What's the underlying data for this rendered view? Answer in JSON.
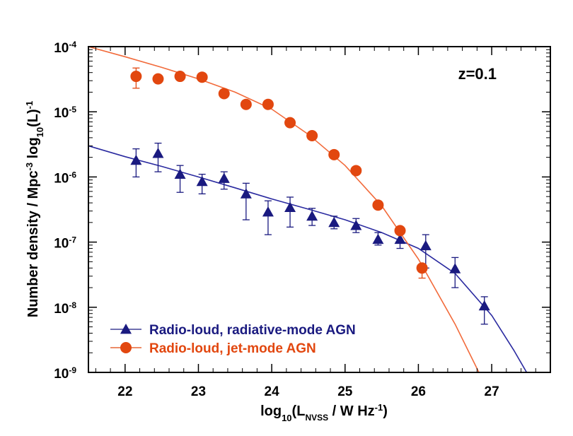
{
  "chart_data": {
    "type": "scatter",
    "title": "",
    "annotation": "z=0.1",
    "xlabel": {
      "pre": "log",
      "sub1": "10",
      "mid": "(L",
      "sub2": "NVSS",
      "post": " / W Hz",
      "sup": "-1",
      "end": ")"
    },
    "ylabel": {
      "p1": "Number density / Mpc",
      "sup1": "-3",
      "p2": " log",
      "sub": "10",
      "p3": "(L)",
      "sup2": "-1"
    },
    "x_range": [
      21.5,
      27.8
    ],
    "y_log_range": [
      -9,
      -4
    ],
    "x_ticks": [
      "22",
      "23",
      "24",
      "25",
      "26",
      "27"
    ],
    "y_ticks": [
      {
        "base": "10",
        "exp": "-9"
      },
      {
        "base": "10",
        "exp": "-8"
      },
      {
        "base": "10",
        "exp": "-7"
      },
      {
        "base": "10",
        "exp": "-6"
      },
      {
        "base": "10",
        "exp": "-5"
      },
      {
        "base": "10",
        "exp": "-4"
      }
    ],
    "legend_position": "bottom-left",
    "series": [
      {
        "name": "Radio-loud, radiative-mode AGN",
        "marker": "triangle",
        "color": "#1a1a80",
        "curve_color": "#2a2aa0",
        "points": [
          {
            "x": 22.15,
            "y": 1.8e-06,
            "lo": 1e-06,
            "hi": 2.7e-06
          },
          {
            "x": 22.45,
            "y": 2.3e-06,
            "lo": 1.2e-06,
            "hi": 3.3e-06
          },
          {
            "x": 22.75,
            "y": 1.1e-06,
            "lo": 5.8e-07,
            "hi": 1.5e-06
          },
          {
            "x": 23.05,
            "y": 8.5e-07,
            "lo": 5.5e-07,
            "hi": 1.1e-06
          },
          {
            "x": 23.35,
            "y": 9.5e-07,
            "lo": 6.5e-07,
            "hi": 1.2e-06
          },
          {
            "x": 23.65,
            "y": 5.5e-07,
            "lo": 2.2e-07,
            "hi": 8e-07
          },
          {
            "x": 23.95,
            "y": 2.9e-07,
            "lo": 1.3e-07,
            "hi": 4.3e-07
          },
          {
            "x": 24.25,
            "y": 3.4e-07,
            "lo": 1.7e-07,
            "hi": 4.9e-07
          },
          {
            "x": 24.55,
            "y": 2.5e-07,
            "lo": 1.8e-07,
            "hi": 3.3e-07
          },
          {
            "x": 24.85,
            "y": 2e-07,
            "lo": 1.6e-07,
            "hi": 2.5e-07
          },
          {
            "x": 25.15,
            "y": 1.8e-07,
            "lo": 1.4e-07,
            "hi": 2.3e-07
          },
          {
            "x": 25.45,
            "y": 1.1e-07,
            "lo": 9e-08,
            "hi": 1.4e-07
          },
          {
            "x": 25.75,
            "y": 1.1e-07,
            "lo": 8e-08,
            "hi": 1.4e-07
          },
          {
            "x": 26.1,
            "y": 8.8e-08,
            "lo": 4e-08,
            "hi": 1.3e-07
          },
          {
            "x": 26.5,
            "y": 3.9e-08,
            "lo": 2e-08,
            "hi": 5.8e-08
          },
          {
            "x": 26.9,
            "y": 1.05e-08,
            "lo": 5.5e-09,
            "hi": 1.45e-08
          }
        ],
        "curve": [
          [
            21.5,
            3e-06
          ],
          [
            22.0,
            2.05e-06
          ],
          [
            22.5,
            1.45e-06
          ],
          [
            23.0,
            1e-06
          ],
          [
            23.5,
            6.8e-07
          ],
          [
            24.0,
            4.6e-07
          ],
          [
            24.5,
            3.2e-07
          ],
          [
            25.0,
            2.2e-07
          ],
          [
            25.5,
            1.4e-07
          ],
          [
            26.0,
            8e-08
          ],
          [
            26.5,
            3.3e-08
          ],
          [
            27.0,
            7.5e-09
          ],
          [
            27.3,
            2.2e-09
          ],
          [
            27.5,
            9e-10
          ]
        ]
      },
      {
        "name": "Radio-loud, jet-mode AGN",
        "marker": "circle",
        "color": "#e2470f",
        "curve_color": "#f26a3a",
        "points": [
          {
            "x": 22.15,
            "y": 3.5e-05,
            "lo": 2.3e-05,
            "hi": 4.7e-05
          },
          {
            "x": 22.45,
            "y": 3.2e-05,
            "lo": null,
            "hi": null
          },
          {
            "x": 22.75,
            "y": 3.5e-05,
            "lo": null,
            "hi": null
          },
          {
            "x": 23.05,
            "y": 3.4e-05,
            "lo": null,
            "hi": null
          },
          {
            "x": 23.35,
            "y": 1.9e-05,
            "lo": null,
            "hi": null
          },
          {
            "x": 23.65,
            "y": 1.3e-05,
            "lo": null,
            "hi": null
          },
          {
            "x": 23.95,
            "y": 1.3e-05,
            "lo": null,
            "hi": null
          },
          {
            "x": 24.25,
            "y": 6.8e-06,
            "lo": null,
            "hi": null
          },
          {
            "x": 24.55,
            "y": 4.3e-06,
            "lo": null,
            "hi": null
          },
          {
            "x": 24.85,
            "y": 2.2e-06,
            "lo": null,
            "hi": null
          },
          {
            "x": 25.15,
            "y": 1.25e-06,
            "lo": null,
            "hi": null
          },
          {
            "x": 25.45,
            "y": 3.7e-07,
            "lo": null,
            "hi": null
          },
          {
            "x": 25.75,
            "y": 1.5e-07,
            "lo": null,
            "hi": null
          },
          {
            "x": 26.05,
            "y": 4e-08,
            "lo": 2.8e-08,
            "hi": null
          }
        ],
        "curve": [
          [
            21.5,
            0.0001
          ],
          [
            22.0,
            7e-05
          ],
          [
            22.5,
            4.8e-05
          ],
          [
            23.0,
            3.2e-05
          ],
          [
            23.5,
            2e-05
          ],
          [
            24.0,
            1.1e-05
          ],
          [
            24.5,
            4.5e-06
          ],
          [
            25.0,
            1.5e-06
          ],
          [
            25.5,
            3.6e-07
          ],
          [
            26.0,
            5.5e-08
          ],
          [
            26.5,
            5.5e-09
          ],
          [
            27.0,
            4e-10
          ]
        ]
      }
    ]
  }
}
